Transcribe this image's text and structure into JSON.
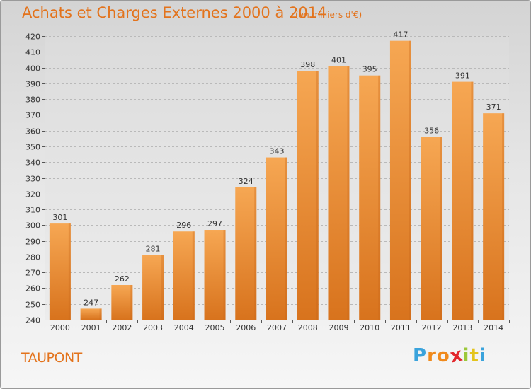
{
  "chart_data": {
    "type": "bar",
    "title": "Achats et Charges Externes 2000 à 2014",
    "unit": "(en milliers d'€)",
    "categories": [
      "2000",
      "2001",
      "2002",
      "2003",
      "2004",
      "2005",
      "2006",
      "2007",
      "2008",
      "2009",
      "2010",
      "2011",
      "2012",
      "2013",
      "2014"
    ],
    "values": [
      301,
      247,
      262,
      281,
      296,
      297,
      324,
      343,
      398,
      401,
      395,
      417,
      356,
      391,
      371
    ],
    "ylim": [
      240,
      420
    ],
    "yticks": [
      240,
      250,
      260,
      270,
      280,
      290,
      300,
      310,
      320,
      330,
      340,
      350,
      360,
      370,
      380,
      390,
      400,
      410,
      420
    ],
    "grid": "horizontal dashed",
    "bar_color": "#f4a04a",
    "bar_color_dark": "#d9761f"
  },
  "place": "TAUPONT",
  "logo": {
    "letters": [
      "P",
      "r",
      "o",
      "x",
      "i",
      "t",
      "i"
    ],
    "colors": [
      "#3aa3dc",
      "#f08a1c",
      "#f08a1c",
      "#e2262b",
      "#9bc83a",
      "#e4c41c",
      "#3aa3dc"
    ]
  }
}
